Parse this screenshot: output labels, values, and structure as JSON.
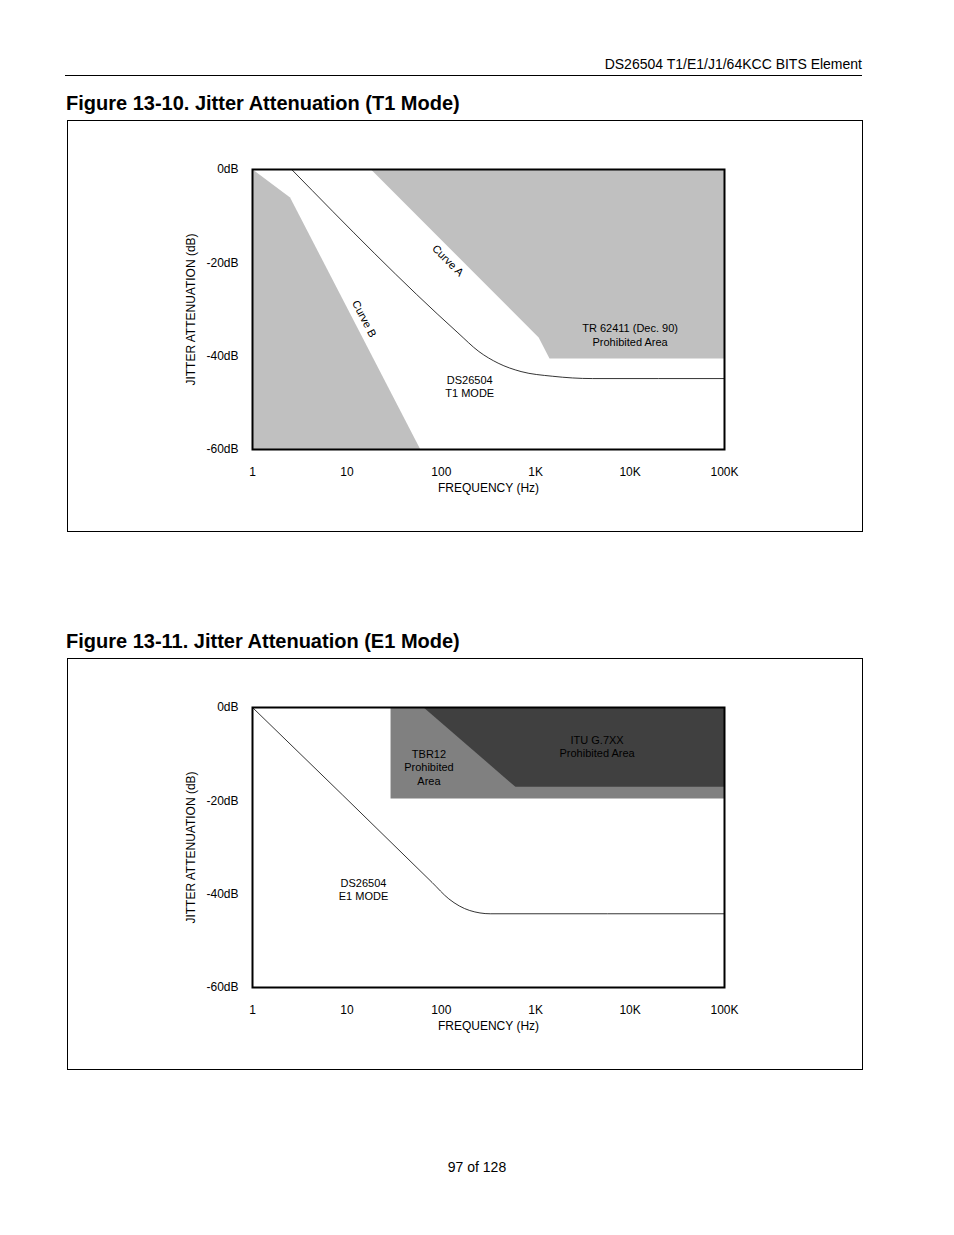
{
  "header": "DS26504 T1/E1/J1/64KCC BITS Element",
  "footer": "97 of 128",
  "chart_data": [
    {
      "type": "line",
      "title": "Figure 13-10. Jitter Attenuation (T1 Mode)",
      "x_label": "FREQUENCY (Hz)",
      "y_label": "JITTER ATTENUATION (dB)",
      "log": "x",
      "grid": false,
      "xlim": [
        1,
        100000
      ],
      "xticks": [
        1,
        10,
        100,
        {
          "value": 1000,
          "label": "1K"
        },
        {
          "value": 10000,
          "label": "10K"
        },
        {
          "value": 100000,
          "label": "100K"
        }
      ],
      "ylim": [
        -60,
        0
      ],
      "yticks": [
        {
          "value": -60,
          "label": "-60dB"
        },
        {
          "value": -40,
          "label": "-40dB"
        },
        {
          "value": -20,
          "label": "-20dB"
        },
        {
          "value": 0,
          "label": "0dB"
        }
      ],
      "series": [
        {
          "name": "Curve B",
          "type": "area",
          "color": "#c0c0c0",
          "x": [
            1,
            2.5,
            60,
            1
          ],
          "values": [
            0,
            -6,
            -60,
            -60
          ]
        },
        {
          "name": "Curve A",
          "type": "area",
          "color": "#c0c0c0",
          "x": [
            18,
            1075,
            1400,
            100000,
            100000
          ],
          "values": [
            0,
            -36,
            -40.5,
            -40.5,
            0
          ]
        },
        {
          "type": "line",
          "color": "#000000",
          "x": [
            2.6,
            150,
            250,
            400,
            700,
            1500,
            4000,
            100000
          ],
          "values": [
            0,
            -35,
            -39,
            -41.5,
            -43.3,
            -44.3,
            -44.8,
            -44.8
          ]
        }
      ],
      "annotations": [
        {
          "text": "TR 62411 (Dec. 90)\nProhibited Area",
          "x": 10000,
          "y": -35.4
        },
        {
          "text": "DS26504\nT1 MODE",
          "x": 200,
          "y": -46.5
        }
      ]
    },
    {
      "type": "line",
      "title": "Figure 13-11. Jitter Attenuation (E1 Mode)",
      "x_label": "FREQUENCY (Hz)",
      "y_label": "JITTER ATTENUATION (dB)",
      "log": "x",
      "grid": false,
      "xlim": [
        1,
        100000
      ],
      "xticks": [
        1,
        10,
        100,
        {
          "value": 1000,
          "label": "1K"
        },
        {
          "value": 10000,
          "label": "10K"
        },
        {
          "value": 100000,
          "label": "100K"
        }
      ],
      "ylim": [
        -60,
        0
      ],
      "yticks": [
        {
          "value": -60,
          "label": "-60dB"
        },
        {
          "value": -40,
          "label": "-40dB"
        },
        {
          "value": -20,
          "label": "-20dB"
        },
        {
          "value": 0,
          "label": "0dB"
        }
      ],
      "series": [
        {
          "type": "area",
          "color": "#808080",
          "x": [
            29,
            100000,
            100000,
            29
          ],
          "values": [
            0,
            0,
            -19.5,
            -19.5
          ]
        },
        {
          "type": "area",
          "color": "#404040",
          "x": [
            65,
            610,
            100000,
            100000
          ],
          "values": [
            0,
            -17,
            -17,
            0
          ]
        },
        {
          "type": "line",
          "color": "#000000",
          "x": [
            1,
            80,
            120,
            200,
            330,
            100000
          ],
          "values": [
            0,
            -37.5,
            -41,
            -43.5,
            -44.2,
            -44.2
          ]
        }
      ],
      "annotations": [
        {
          "text": "TBR12\nProhibited\nArea",
          "x": 74,
          "y": -12.8
        },
        {
          "text": "ITU G.7XX\nProhibited Area",
          "x": 4470,
          "y": -8.3
        },
        {
          "text": "DS26504\nE1 MODE",
          "x": 15,
          "y": -38.9
        }
      ]
    }
  ]
}
